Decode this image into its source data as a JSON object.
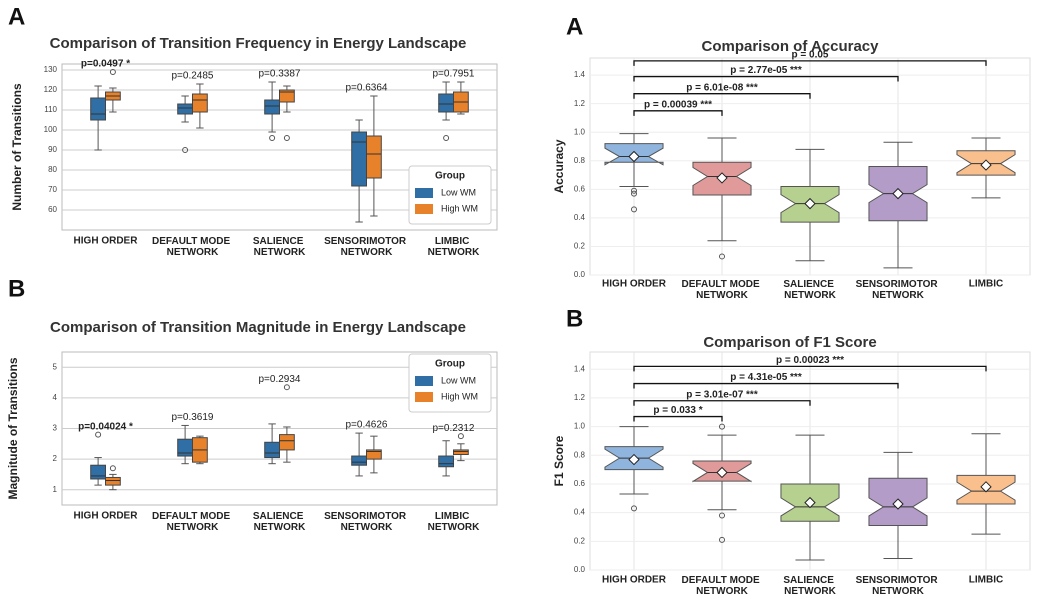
{
  "chart_data": [
    {
      "type": "box",
      "panel_label": "A",
      "title": "Comparison of Transition Frequency in Energy Landscape",
      "ylabel": "Number of Transitions",
      "categories": [
        "HIGH ORDER",
        "DEFAULT MODE NETWORK",
        "SALIENCE NETWORK",
        "SENSORIMOTOR NETWORK",
        "LIMBIC NETWORK"
      ],
      "ylim": [
        50,
        133
      ],
      "yticks": [
        60,
        70,
        80,
        90,
        100,
        110,
        120,
        130
      ],
      "grid": true,
      "legend_title": "Group",
      "legend": "lower right",
      "annotations": [
        "p=0.0497  *",
        "p=0.2485",
        "p=0.3387",
        "p=0.6364",
        "p=0.7951"
      ],
      "series": [
        {
          "name": "Low WM",
          "color": "#2f6fa5",
          "boxes": [
            {
              "min": 90,
              "q1": 105,
              "median": 108,
              "q3": 116,
              "max": 122,
              "outliers": []
            },
            {
              "min": 104,
              "q1": 108,
              "median": 111,
              "q3": 113,
              "max": 117,
              "outliers": [
                90
              ]
            },
            {
              "min": 99,
              "q1": 108,
              "median": 112,
              "q3": 115,
              "max": 124,
              "outliers": [
                96
              ]
            },
            {
              "min": 54,
              "q1": 72,
              "median": 94,
              "q3": 99,
              "max": 105,
              "outliers": []
            },
            {
              "min": 105,
              "q1": 109,
              "median": 113,
              "q3": 118,
              "max": 124,
              "outliers": [
                96
              ]
            }
          ]
        },
        {
          "name": "High WM",
          "color": "#e8822a",
          "boxes": [
            {
              "min": 109,
              "q1": 115,
              "median": 117,
              "q3": 119,
              "max": 121,
              "outliers": [
                129
              ]
            },
            {
              "min": 101,
              "q1": 109,
              "median": 115,
              "q3": 118,
              "max": 123,
              "outliers": []
            },
            {
              "min": 109,
              "q1": 114,
              "median": 119,
              "q3": 120,
              "max": 122,
              "outliers": [
                96
              ]
            },
            {
              "min": 57,
              "q1": 76,
              "median": 88,
              "q3": 97,
              "max": 117,
              "outliers": []
            },
            {
              "min": 108,
              "q1": 109,
              "median": 114,
              "q3": 119,
              "max": 124,
              "outliers": []
            }
          ]
        }
      ]
    },
    {
      "type": "box",
      "panel_label": "B",
      "title": "Comparison of Transition Magnitude in Energy Landscape",
      "ylabel": "Magnitude of Transitions",
      "categories": [
        "HIGH ORDER",
        "DEFAULT MODE NETWORK",
        "SALIENCE NETWORK",
        "SENSORIMOTOR NETWORK",
        "LIMBIC NETWORK"
      ],
      "ylim": [
        0.5,
        5.5
      ],
      "yticks": [
        1,
        2,
        3,
        4,
        5
      ],
      "grid": true,
      "legend_title": "Group",
      "legend": "upper right",
      "annotations": [
        "p=0.04024 *",
        "p=0.3619",
        "p=0.2934",
        "p=0.4626",
        "p=0.2312"
      ],
      "series": [
        {
          "name": "Low WM",
          "color": "#2f6fa5",
          "boxes": [
            {
              "min": 1.15,
              "q1": 1.35,
              "median": 1.45,
              "q3": 1.8,
              "max": 2.05,
              "outliers": [
                2.8
              ]
            },
            {
              "min": 1.85,
              "q1": 2.1,
              "median": 2.2,
              "q3": 2.65,
              "max": 3.1,
              "outliers": []
            },
            {
              "min": 1.85,
              "q1": 2.05,
              "median": 2.2,
              "q3": 2.55,
              "max": 3.15,
              "outliers": []
            },
            {
              "min": 1.45,
              "q1": 1.8,
              "median": 1.9,
              "q3": 2.1,
              "max": 2.85,
              "outliers": []
            },
            {
              "min": 1.45,
              "q1": 1.75,
              "median": 1.85,
              "q3": 2.1,
              "max": 2.6,
              "outliers": []
            }
          ]
        },
        {
          "name": "High WM",
          "color": "#e8822a",
          "boxes": [
            {
              "min": 1.0,
              "q1": 1.15,
              "median": 1.3,
              "q3": 1.4,
              "max": 1.5,
              "outliers": [
                1.7
              ]
            },
            {
              "min": 1.85,
              "q1": 1.9,
              "median": 2.3,
              "q3": 2.7,
              "max": 2.75,
              "outliers": []
            },
            {
              "min": 1.9,
              "q1": 2.3,
              "median": 2.6,
              "q3": 2.8,
              "max": 3.05,
              "outliers": [
                4.35
              ]
            },
            {
              "min": 1.55,
              "q1": 2.0,
              "median": 2.25,
              "q3": 2.3,
              "max": 2.75,
              "outliers": []
            },
            {
              "min": 1.95,
              "q1": 2.15,
              "median": 2.25,
              "q3": 2.3,
              "max": 2.5,
              "outliers": [
                2.75
              ]
            }
          ]
        }
      ]
    },
    {
      "type": "notched-box",
      "panel_label": "A",
      "title": "Comparison of Accuracy",
      "ylabel": "Accuracy",
      "categories": [
        "HIGH ORDER",
        "DEFAULT MODE NETWORK",
        "SALIENCE NETWORK",
        "SENSORIMOTOR NETWORK",
        "LIMBIC"
      ],
      "colors": [
        "#8fb4dd",
        "#e09a9a",
        "#b6d08f",
        "#b39cc8",
        "#f9c08d"
      ],
      "ylim": [
        0,
        1.52
      ],
      "yticks": [
        {
          "value": 0,
          "label": "0.0"
        },
        0.2,
        0.4,
        0.6,
        0.8,
        {
          "value": 1,
          "label": "1.0"
        },
        1.2,
        1.4
      ],
      "grid": true,
      "brackets": [
        {
          "label": "p = 0.00039 ***",
          "start": "HIGH ORDER",
          "end": "DEFAULT MODE NETWORK",
          "y": 1.15
        },
        {
          "label": "p = 6.01e-08 ***",
          "start": "HIGH ORDER",
          "end": "SALIENCE NETWORK",
          "y": 1.27
        },
        {
          "label": "p = 2.77e-05 ***",
          "start": "HIGH ORDER",
          "end": "SENSORIMOTOR NETWORK",
          "y": 1.39
        },
        {
          "label": "p = 0.05",
          "start": "HIGH ORDER",
          "end": "LIMBIC",
          "y": 1.5
        }
      ],
      "boxes": [
        {
          "min": 0.62,
          "q1": 0.79,
          "median": 0.83,
          "q3": 0.92,
          "max": 0.99,
          "mean": 0.83,
          "outliers": [
            0.59,
            0.57,
            0.46
          ]
        },
        {
          "min": 0.24,
          "q1": 0.56,
          "median": 0.69,
          "q3": 0.79,
          "max": 0.96,
          "mean": 0.68,
          "outliers": [
            0.13
          ]
        },
        {
          "min": 0.1,
          "q1": 0.37,
          "median": 0.5,
          "q3": 0.62,
          "max": 0.88,
          "mean": 0.5,
          "outliers": []
        },
        {
          "min": 0.05,
          "q1": 0.38,
          "median": 0.57,
          "q3": 0.76,
          "max": 0.93,
          "mean": 0.57,
          "outliers": []
        },
        {
          "min": 0.54,
          "q1": 0.7,
          "median": 0.78,
          "q3": 0.87,
          "max": 0.96,
          "mean": 0.77,
          "outliers": []
        }
      ]
    },
    {
      "type": "notched-box",
      "panel_label": "B",
      "title": "Comparison of F1 Score",
      "ylabel": "F1 Score",
      "categories": [
        "HIGH ORDER",
        "DEFAULT MODE NETWORK",
        "SALIENCE NETWORK",
        "SENSORIMOTOR NETWORK",
        "LIMBIC"
      ],
      "colors": [
        "#8fb4dd",
        "#e09a9a",
        "#b6d08f",
        "#b39cc8",
        "#f9c08d"
      ],
      "ylim": [
        0,
        1.52
      ],
      "yticks": [
        {
          "value": 0,
          "label": "0.0"
        },
        0.2,
        0.4,
        0.6,
        0.8,
        {
          "value": 1,
          "label": "1.0"
        },
        1.2,
        1.4
      ],
      "grid": true,
      "brackets": [
        {
          "label": "p = 0.033 *",
          "start": "HIGH ORDER",
          "end": "DEFAULT MODE NETWORK",
          "y": 1.07
        },
        {
          "label": "p = 3.01e-07 ***",
          "start": "HIGH ORDER",
          "end": "SALIENCE NETWORK",
          "y": 1.18
        },
        {
          "label": "p = 4.31e-05 ***",
          "start": "HIGH ORDER",
          "end": "SENSORIMOTOR NETWORK",
          "y": 1.3
        },
        {
          "label": "p = 0.00023 ***",
          "start": "HIGH ORDER",
          "end": "LIMBIC",
          "y": 1.42
        }
      ],
      "boxes": [
        {
          "min": 0.53,
          "q1": 0.7,
          "median": 0.78,
          "q3": 0.86,
          "max": 1.0,
          "mean": 0.77,
          "outliers": [
            0.43
          ]
        },
        {
          "min": 0.42,
          "q1": 0.62,
          "median": 0.68,
          "q3": 0.76,
          "max": 0.94,
          "mean": 0.68,
          "outliers": [
            1.0,
            0.38,
            0.21
          ]
        },
        {
          "min": 0.07,
          "q1": 0.34,
          "median": 0.44,
          "q3": 0.6,
          "max": 0.94,
          "mean": 0.47,
          "outliers": []
        },
        {
          "min": 0.08,
          "q1": 0.31,
          "median": 0.44,
          "q3": 0.64,
          "max": 0.82,
          "mean": 0.46,
          "outliers": []
        },
        {
          "min": 0.25,
          "q1": 0.46,
          "median": 0.55,
          "q3": 0.66,
          "max": 0.95,
          "mean": 0.58,
          "outliers": []
        }
      ]
    }
  ]
}
